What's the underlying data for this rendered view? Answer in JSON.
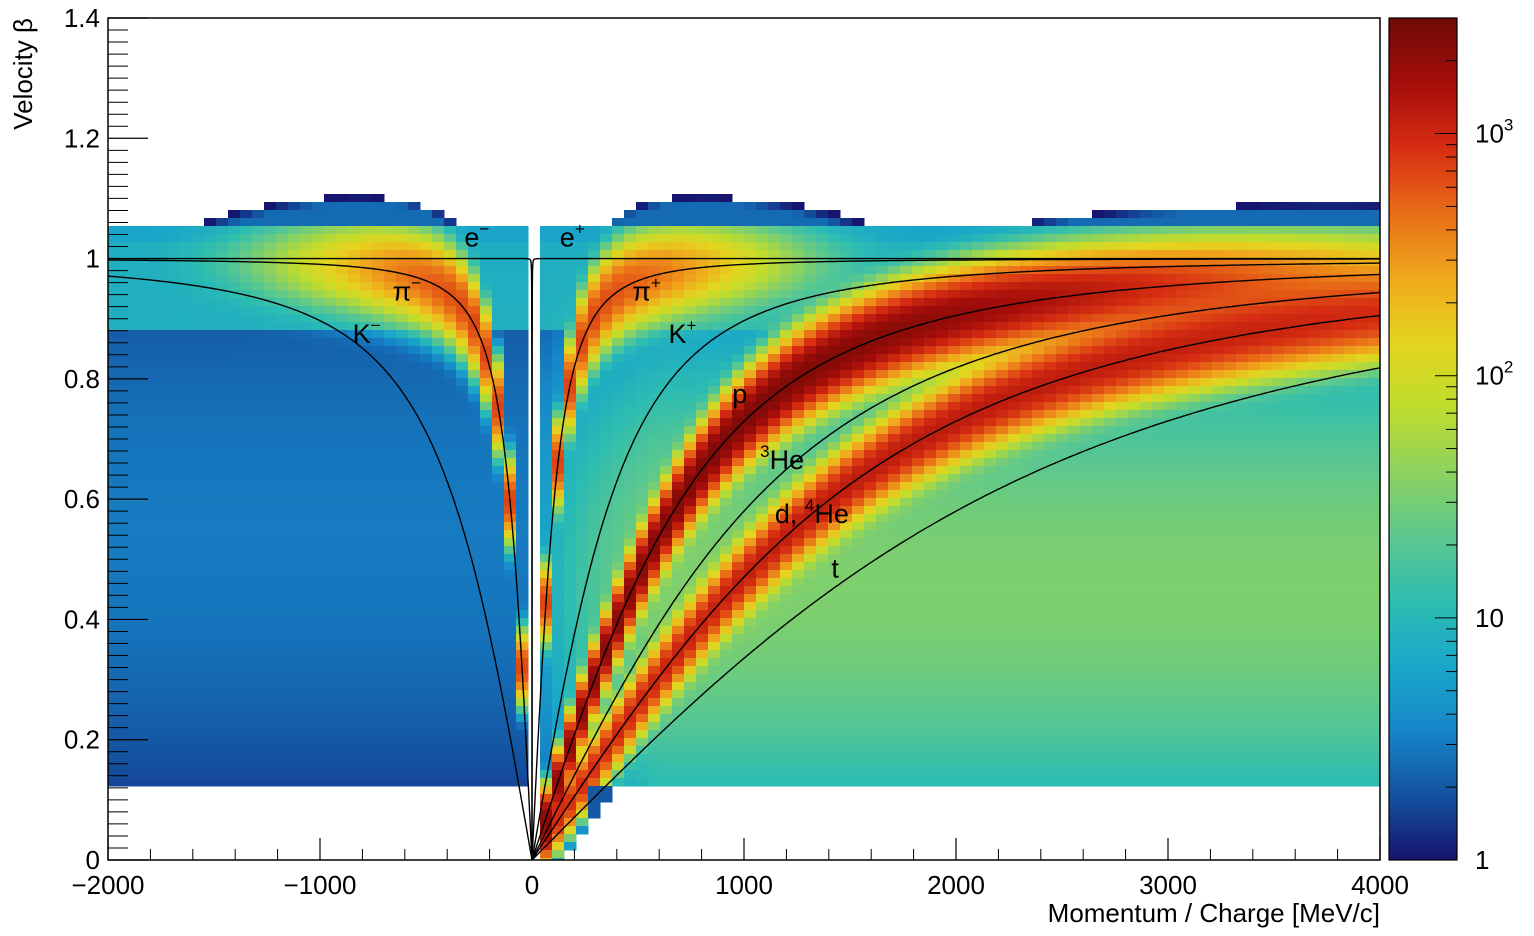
{
  "chart_data": {
    "type": "heatmap",
    "xlabel": "Momentum / Charge [MeV/c]",
    "ylabel": "Velocity β",
    "xlim": [
      -2000,
      4000
    ],
    "ylim": [
      0,
      1.4
    ],
    "x_ticks": [
      -2000,
      -1000,
      0,
      1000,
      2000,
      3000,
      4000
    ],
    "x_tick_labels": [
      "−2000",
      "−1000",
      "0",
      "1000",
      "2000",
      "3000",
      "4000"
    ],
    "y_ticks": [
      0,
      0.2,
      0.4,
      0.6,
      0.8,
      1,
      1.2,
      1.4
    ],
    "y_tick_labels": [
      "0",
      "0.2",
      "0.4",
      "0.6",
      "0.8",
      "1",
      "1.2",
      "1.4"
    ],
    "colorbar": {
      "scale": "log",
      "range": [
        1,
        3000
      ],
      "ticks": [
        1,
        10,
        100,
        1000
      ],
      "tick_labels": [
        {
          "base": "1",
          "exp": ""
        },
        {
          "base": "10",
          "exp": ""
        },
        {
          "base": "10",
          "exp": "2"
        },
        {
          "base": "10",
          "exp": "3"
        }
      ],
      "colors": [
        "#16146f",
        "#14519f",
        "#1686c9",
        "#1aa7c9",
        "#2dbdb1",
        "#5cc88e",
        "#8ed25e",
        "#c0dc2d",
        "#e4d41f",
        "#f0a81c",
        "#e96c18",
        "#d62d12",
        "#a40d0a",
        "#6e0a06"
      ]
    },
    "curves": [
      {
        "particle": "e",
        "mass": 0.511,
        "charge": 1
      },
      {
        "particle": "π",
        "mass": 139.6,
        "charge": 1
      },
      {
        "particle": "K",
        "mass": 493.7,
        "charge": 1
      },
      {
        "particle": "p",
        "mass": 938.3,
        "charge": 1
      },
      {
        "particle": "3He",
        "mass": 2808.4,
        "charge": 2
      },
      {
        "particle": "d, 4He",
        "mass": 1875.6,
        "charge": 1
      },
      {
        "particle": "t",
        "mass": 2808.9,
        "charge": 1
      }
    ],
    "bands": [
      {
        "particle": "π+",
        "mass": 139.6,
        "peak_counts": 700
      },
      {
        "particle": "π-",
        "mass": 139.6,
        "peak_counts": 700
      },
      {
        "particle": "p",
        "mass": 938.3,
        "peak_counts": 2500
      },
      {
        "particle": "d, 4He",
        "mass": 1875.6,
        "peak_counts": 1200
      }
    ],
    "annotations": [
      {
        "id": "e_minus",
        "text": "e",
        "sup": "−",
        "x": -260,
        "y": 1.02
      },
      {
        "id": "e_plus",
        "text": "e",
        "sup": "+",
        "x": 190,
        "y": 1.02
      },
      {
        "id": "pi_minus",
        "text": "π",
        "sup": "−",
        "x": -590,
        "y": 0.93
      },
      {
        "id": "pi_plus",
        "text": "π",
        "sup": "+",
        "x": 540,
        "y": 0.93
      },
      {
        "id": "k_minus",
        "text": "K",
        "sup": "−",
        "x": -780,
        "y": 0.86
      },
      {
        "id": "k_plus",
        "text": "K",
        "sup": "+",
        "x": 710,
        "y": 0.86
      },
      {
        "id": "p",
        "text": "p",
        "sup": "",
        "x": 980,
        "y": 0.76
      },
      {
        "id": "he3",
        "text": "He",
        "pre": "3",
        "x": 1180,
        "y": 0.65
      },
      {
        "id": "d_he4",
        "text": "He",
        "pre_text": "d, ",
        "pre": "4",
        "x": 1320,
        "y": 0.56
      },
      {
        "id": "t",
        "text": "t",
        "sup": "",
        "x": 1430,
        "y": 0.47
      }
    ]
  }
}
